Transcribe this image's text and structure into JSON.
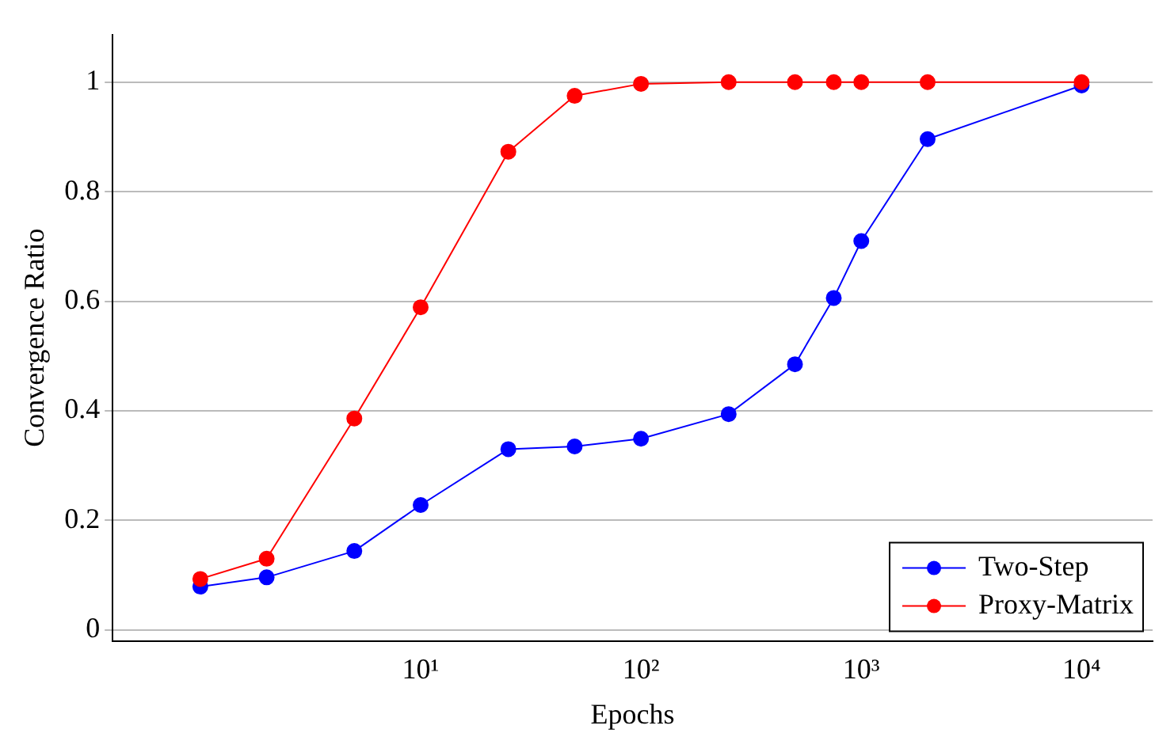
{
  "chart_data": {
    "type": "line",
    "xlabel": "Epochs",
    "ylabel": "Convergence Ratio",
    "log": "x",
    "grid": "y",
    "legend": "bottom right",
    "marker": "circle",
    "line_style": "solid",
    "xlim": [
      0.4,
      21000
    ],
    "xticks": [
      {
        "value": 10,
        "label": "10¹"
      },
      {
        "value": 100,
        "label": "10²"
      },
      {
        "value": 1000,
        "label": "10³"
      },
      {
        "value": 10000,
        "label": "10⁴"
      }
    ],
    "ylim": [
      -0.02,
      1.087
    ],
    "yticks": [
      0,
      0.2,
      0.4,
      0.6,
      0.8,
      1
    ],
    "x": [
      1,
      2,
      5,
      10,
      25,
      50,
      100,
      250,
      500,
      750,
      1000,
      2000,
      10000
    ],
    "series": [
      {
        "name": "Two-Step",
        "color": "#0000ff",
        "values": [
          0.079,
          0.096,
          0.144,
          0.228,
          0.33,
          0.335,
          0.349,
          0.394,
          0.485,
          0.606,
          0.71,
          0.896,
          0.994
        ]
      },
      {
        "name": "Proxy-Matrix",
        "color": "#ff0000",
        "values": [
          0.093,
          0.13,
          0.386,
          0.589,
          0.873,
          0.975,
          0.997,
          1.0,
          1.0,
          1.0,
          1.0,
          1.0,
          1.0
        ]
      }
    ]
  }
}
